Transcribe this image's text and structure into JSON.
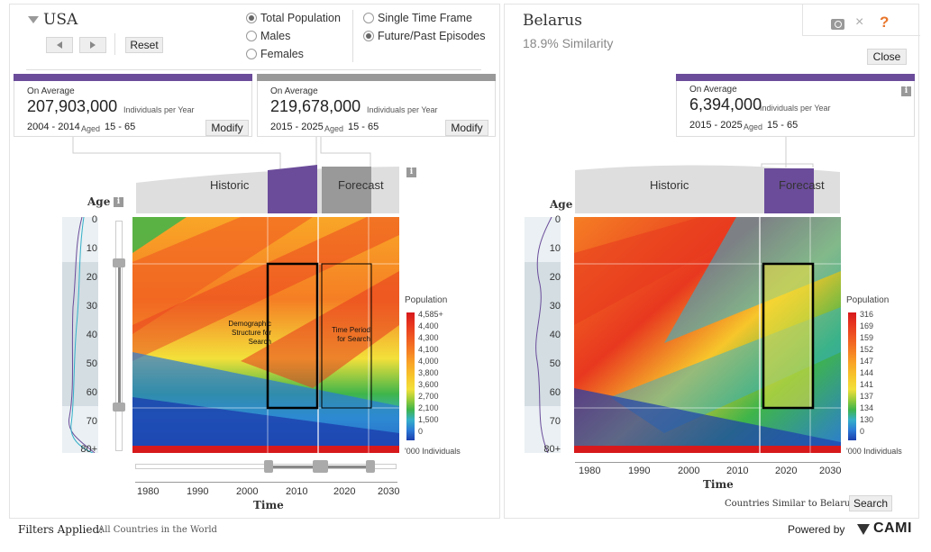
{
  "left": {
    "country": "USA",
    "reset_label": "Reset",
    "radios_population": [
      {
        "label": "Total Population",
        "checked": true
      },
      {
        "label": "Males",
        "checked": false
      },
      {
        "label": "Females",
        "checked": false
      }
    ],
    "radios_mode": [
      {
        "label": "Single Time Frame",
        "checked": false
      },
      {
        "label": "Future/Past Episodes",
        "checked": true
      }
    ],
    "cards": [
      {
        "heading": "On Average",
        "value": "207,903,000",
        "unit": "Individuals per Year",
        "years": "2004 - 2014",
        "aged_label": "Aged",
        "ages": "15 - 65",
        "modify_label": "Modify",
        "bar_color": "#6b4c9a"
      },
      {
        "heading": "On Average",
        "value": "219,678,000",
        "unit": "Individuals per Year",
        "years": "2015 - 2025",
        "aged_label": "Aged",
        "ages": "15 - 65",
        "modify_label": "Modify",
        "bar_color": "#999999"
      }
    ],
    "historic_label": "Historic",
    "forecast_label": "Forecast",
    "age_label": "Age",
    "y_ticks": [
      "0",
      "10",
      "20",
      "30",
      "40",
      "50",
      "60",
      "70",
      "80+"
    ],
    "x_ticks": [
      "1980",
      "1990",
      "2000",
      "2010",
      "2020",
      "2030"
    ],
    "x_label": "Time",
    "annotation_demo": "Demographic Structure for Search",
    "annotation_period": "Time Period for Search",
    "legend_title": "Population",
    "legend_values": [
      "4,585+",
      "4,400",
      "4,300",
      "4,100",
      "4,000",
      "3,800",
      "3,600",
      "2,700",
      "2,100",
      "1,500",
      "0"
    ],
    "legend_unit": "'000 Individuals"
  },
  "right": {
    "country": "Belarus",
    "similarity": "18.9% Similarity",
    "close_label": "Close",
    "card": {
      "heading": "On Average",
      "value": "6,394,000",
      "unit": "Individuals per Year",
      "years": "2015 - 2025",
      "aged_label": "Aged",
      "ages": "15 - 65",
      "bar_color": "#6b4c9a"
    },
    "historic_label": "Historic",
    "forecast_label": "Forecast",
    "age_label": "Age",
    "y_ticks": [
      "0",
      "10",
      "20",
      "30",
      "40",
      "50",
      "60",
      "70",
      "80+"
    ],
    "x_ticks": [
      "1980",
      "1990",
      "2000",
      "2010",
      "2020",
      "2030"
    ],
    "x_label": "Time",
    "legend_title": "Population",
    "legend_values": [
      "316",
      "169",
      "159",
      "152",
      "147",
      "144",
      "141",
      "137",
      "134",
      "130",
      "0"
    ],
    "legend_unit": "'000 Individuals",
    "similar_label": "Countries Similar to Belarus",
    "search_label": "Search"
  },
  "footer": {
    "filters_label": "Filters Applied:",
    "filters_value": "All Countries in the World",
    "powered_label": "Powered by",
    "brand": "CAMI"
  },
  "colors": {
    "purple": "#6b4c9a",
    "gray_band": "#999999",
    "accent_orange": "#e8762c",
    "legend_scale": [
      "#d7191c",
      "#e8381f",
      "#f05a22",
      "#f57e24",
      "#f9a627",
      "#f7c62b",
      "#f3e03a",
      "#9ccd3a",
      "#3fb54a",
      "#35b0c9",
      "#2b7bd6",
      "#1c3fae"
    ]
  }
}
